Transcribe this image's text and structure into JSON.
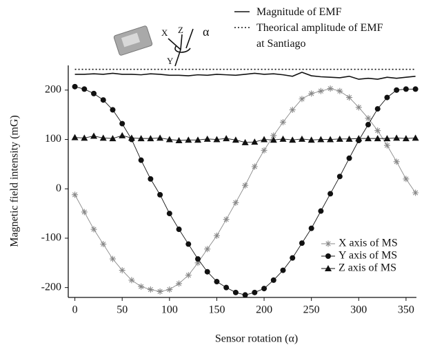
{
  "chart_data": {
    "type": "line",
    "x_label": "Sensor rotation (α)",
    "y_label": "Magnetic field intensity (mG)",
    "annotations": [
      "X",
      "Z",
      "α",
      "Y"
    ],
    "x": [
      0,
      10,
      20,
      30,
      40,
      50,
      60,
      70,
      80,
      90,
      100,
      110,
      120,
      130,
      140,
      150,
      160,
      170,
      180,
      190,
      200,
      210,
      220,
      230,
      240,
      250,
      260,
      270,
      280,
      290,
      300,
      310,
      320,
      330,
      340,
      350,
      360
    ],
    "xlim": [
      -7,
      361
    ],
    "ylim": [
      -220,
      250
    ],
    "xticks": [
      0,
      50,
      100,
      150,
      200,
      250,
      300,
      350
    ],
    "yticks": [
      -200,
      -100,
      0,
      100,
      200
    ],
    "series": [
      {
        "name": "Magnitude of EMF",
        "color": "#111111",
        "marker": "none",
        "dash": "solid",
        "values": [
          232,
          232,
          233,
          232,
          234,
          232,
          232,
          231,
          233,
          232,
          230,
          230,
          229,
          231,
          230,
          232,
          231,
          230,
          232,
          234,
          232,
          233,
          231,
          228,
          236,
          229,
          227,
          226,
          225,
          228,
          222,
          224,
          222,
          226,
          224,
          226,
          228
        ]
      },
      {
        "name": "Theorical amplitude of EMF at Santiago",
        "color": "#111111",
        "marker": "none",
        "dash": "dotted",
        "values": [
          242,
          242,
          242,
          242,
          242,
          242,
          242,
          242,
          242,
          242,
          242,
          242,
          242,
          242,
          242,
          242,
          242,
          242,
          242,
          242,
          242,
          242,
          242,
          242,
          242,
          242,
          242,
          242,
          242,
          242,
          242,
          242,
          242,
          242,
          242,
          242,
          242
        ]
      },
      {
        "name": "X axis of MS",
        "color": "#888888",
        "marker": "star",
        "dash": "solid",
        "values": [
          -12,
          -47,
          -82,
          -112,
          -142,
          -165,
          -185,
          -198,
          -204,
          -208,
          -204,
          -192,
          -175,
          -150,
          -122,
          -95,
          -62,
          -28,
          7,
          45,
          78,
          108,
          135,
          160,
          182,
          193,
          198,
          203,
          198,
          185,
          165,
          143,
          118,
          88,
          55,
          20,
          -8
        ]
      },
      {
        "name": "Y axis of MS",
        "color": "#111111",
        "marker": "circle",
        "dash": "solid",
        "values": [
          207,
          202,
          193,
          180,
          160,
          132,
          100,
          58,
          20,
          -12,
          -50,
          -82,
          -112,
          -142,
          -168,
          -188,
          -200,
          -210,
          -215,
          -210,
          -202,
          -185,
          -165,
          -140,
          -110,
          -80,
          -45,
          -10,
          25,
          62,
          98,
          130,
          162,
          185,
          200,
          202,
          202
        ]
      },
      {
        "name": "Z axis of MS",
        "color": "#111111",
        "marker": "triangle",
        "dash": "solid",
        "values": [
          104,
          103,
          107,
          103,
          102,
          108,
          103,
          102,
          102,
          103,
          100,
          98,
          99,
          99,
          101,
          100,
          102,
          99,
          94,
          95,
          100,
          99,
          101,
          99,
          101,
          99,
          100,
          100,
          101,
          101,
          102,
          102,
          102,
          102,
          103,
          102,
          103
        ]
      }
    ]
  }
}
